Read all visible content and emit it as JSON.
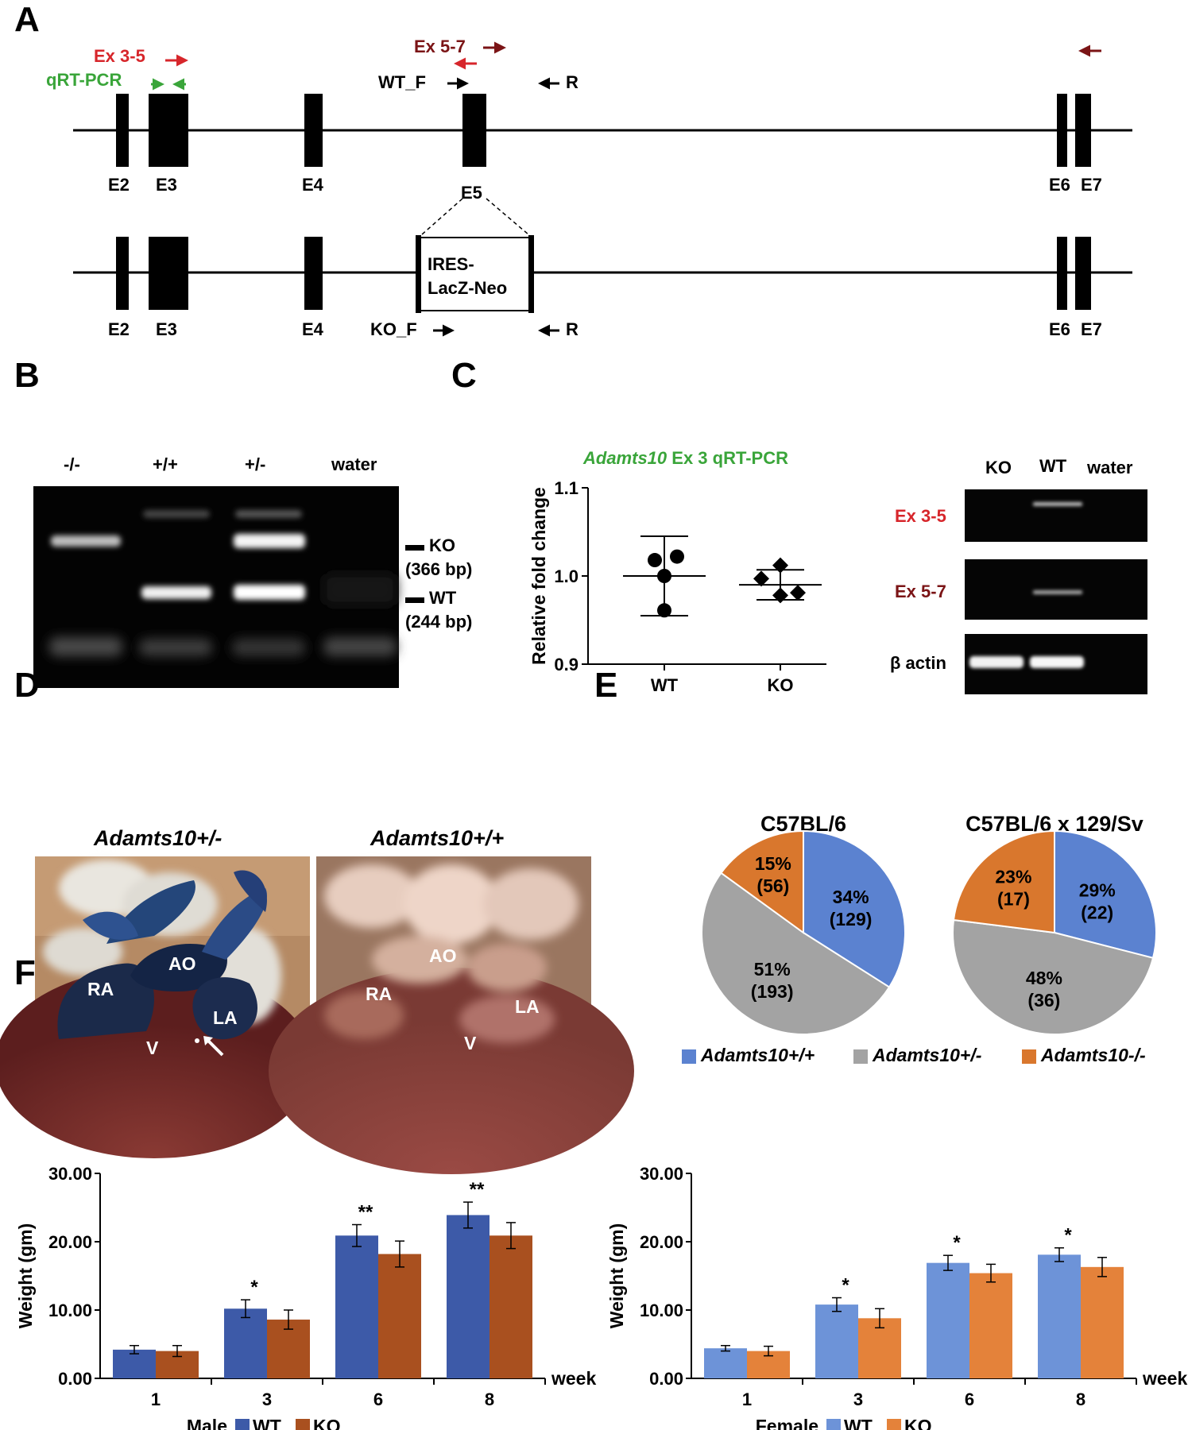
{
  "panels": {
    "a": "A",
    "b": "B",
    "c": "C",
    "d": "D",
    "e": "E",
    "f": "F"
  },
  "colors": {
    "ex35": "#d7262b",
    "qrt": "#3aa53a",
    "ex57": "#7b1416",
    "wt_male": "#3d5aa8",
    "ko_male": "#a9501f",
    "wt_female": "#6d93d8",
    "ko_female": "#e4823a",
    "pie_blue": "#5b82d0",
    "pie_gray": "#a3a3a3",
    "pie_orange": "#d9772d"
  },
  "panel_a": {
    "primer_ex35": "Ex 3-5",
    "primer_qrt": "qRT-PCR",
    "primer_ex57": "Ex 5-7",
    "wt_f": "WT_F",
    "ko_f": "KO_F",
    "r": "R",
    "cassette_line1": "IRES-",
    "cassette_line2": "LacZ-Neo",
    "exons": {
      "e2": "E2",
      "e3": "E3",
      "e4": "E4",
      "e5": "E5",
      "e6": "E6",
      "e7": "E7"
    }
  },
  "panel_b": {
    "lanes": [
      "-/-",
      "+/+",
      "+/-",
      "water"
    ],
    "ko_label": "KO",
    "ko_size": "(366 bp)",
    "wt_label": "WT",
    "wt_size": "(244 bp)"
  },
  "panel_c": {
    "title_gene": "Adamts10",
    "title_rest": " Ex 3 qRT-PCR",
    "gel_lanes": [
      "KO",
      "WT",
      "water"
    ],
    "gel_rows": [
      "Ex 3-5",
      "Ex 5-7",
      "β actin"
    ]
  },
  "panel_d": {
    "left_title": "Adamts10+/-",
    "right_title": "Adamts10+/+",
    "labels_left": {
      "ra": "RA",
      "ao": "AO",
      "la": "LA",
      "v": "V"
    },
    "labels_right": {
      "ra": "RA",
      "ao": "AO",
      "la": "LA",
      "v": "V"
    }
  },
  "panel_e": {
    "legend": [
      "Adamts10+/+",
      "Adamts10+/-",
      "Adamts10-/-"
    ]
  },
  "chart_data": [
    {
      "type": "scatter",
      "title": "Adamts10 Ex 3 qRT-PCR",
      "xlabel": "",
      "ylabel": "Relative fold change",
      "categories": [
        "WT",
        "KO"
      ],
      "ylim": [
        0.9,
        1.1
      ],
      "yticks": [
        "0.9",
        "1.0",
        "1.1"
      ],
      "series": [
        {
          "name": "WT",
          "points": [
            1.018,
            1.022,
            1.0,
            0.961
          ],
          "mean": 1.0,
          "sd": 0.045
        },
        {
          "name": "KO",
          "points": [
            1.012,
            0.997,
            0.978,
            0.981
          ],
          "mean": 0.99,
          "sd": 0.017
        }
      ]
    },
    {
      "type": "pie",
      "title": "C57BL/6",
      "slices": [
        {
          "label": "Adamts10+/+",
          "percent": 34,
          "count": 129,
          "pct_text": "34%",
          "count_text": "(129)"
        },
        {
          "label": "Adamts10+/-",
          "percent": 51,
          "count": 193,
          "pct_text": "51%",
          "count_text": "(193)"
        },
        {
          "label": "Adamts10-/-",
          "percent": 15,
          "count": 56,
          "pct_text": "15%",
          "count_text": "(56)"
        }
      ]
    },
    {
      "type": "pie",
      "title": "C57BL/6 x 129/Sv",
      "slices": [
        {
          "label": "Adamts10+/+",
          "percent": 29,
          "count": 22,
          "pct_text": "29%",
          "count_text": "(22)"
        },
        {
          "label": "Adamts10+/-",
          "percent": 48,
          "count": 36,
          "pct_text": "48%",
          "count_text": "(36)"
        },
        {
          "label": "Adamts10-/-",
          "percent": 23,
          "count": 17,
          "pct_text": "23%",
          "count_text": "(17)"
        }
      ]
    },
    {
      "type": "bar",
      "title": "",
      "group_label": "Male",
      "xlabel": "week",
      "ylabel": "Weight (gm)",
      "categories": [
        "1",
        "3",
        "6",
        "8"
      ],
      "ylim": [
        0,
        30
      ],
      "yticks": [
        "0.00",
        "10.00",
        "20.00",
        "30.00"
      ],
      "series": [
        {
          "name": "WT",
          "values": [
            4.2,
            10.2,
            20.9,
            23.9
          ],
          "errors": [
            0.6,
            1.3,
            1.6,
            1.9
          ]
        },
        {
          "name": "KO",
          "values": [
            4.0,
            8.6,
            18.2,
            20.9
          ],
          "errors": [
            0.8,
            1.4,
            1.9,
            1.9
          ]
        }
      ],
      "significance": [
        "",
        "*",
        "**",
        "**"
      ]
    },
    {
      "type": "bar",
      "title": "",
      "group_label": "Female",
      "xlabel": "week",
      "ylabel": "Weight (gm)",
      "categories": [
        "1",
        "3",
        "6",
        "8"
      ],
      "ylim": [
        0,
        30
      ],
      "yticks": [
        "0.00",
        "10.00",
        "20.00",
        "30.00"
      ],
      "series": [
        {
          "name": "WT",
          "values": [
            4.4,
            10.8,
            16.9,
            18.1
          ],
          "errors": [
            0.4,
            1.0,
            1.1,
            1.0
          ]
        },
        {
          "name": "KO",
          "values": [
            4.0,
            8.8,
            15.4,
            16.3
          ],
          "errors": [
            0.7,
            1.4,
            1.3,
            1.4
          ]
        }
      ],
      "significance": [
        "",
        "*",
        "*",
        "*"
      ]
    }
  ]
}
